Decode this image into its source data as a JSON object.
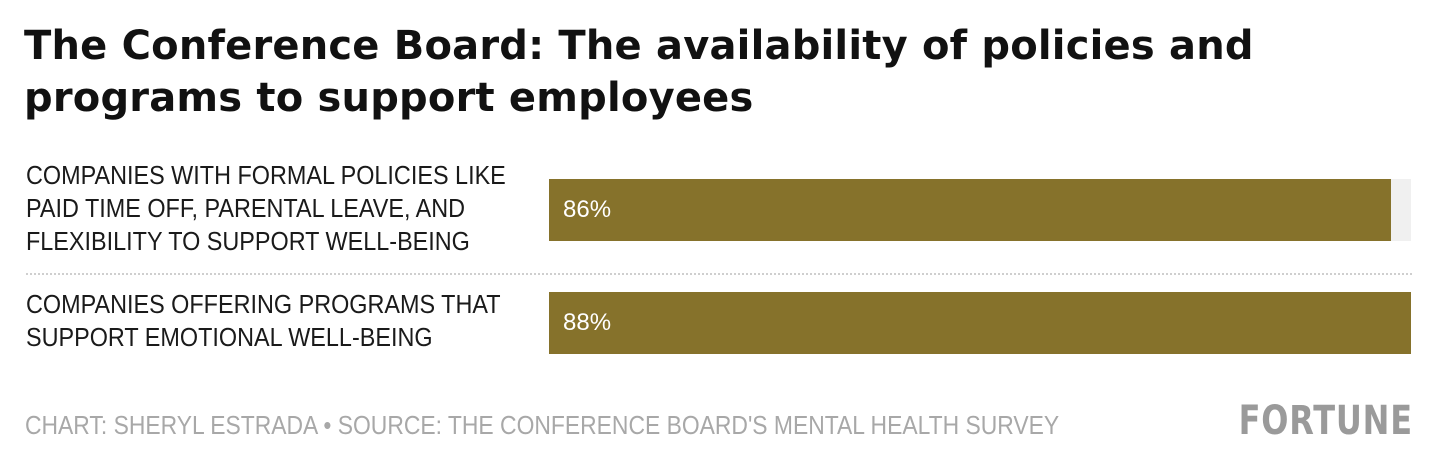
{
  "chart_data": {
    "type": "bar",
    "orientation": "horizontal",
    "title": "The Conference Board: The availability of policies and programs to support employees",
    "categories": [
      "COMPANIES WITH FORMAL POLICIES LIKE PAID TIME OFF, PARENTAL LEAVE, AND FLEXIBILITY TO SUPPORT WELL-BEING",
      "COMPANIES OFFERING PROGRAMS THAT SUPPORT EMOTIONAL WELL-BEING"
    ],
    "category_lines": [
      [
        "COMPANIES WITH FORMAL POLICIES LIKE",
        "PAID TIME OFF, PARENTAL LEAVE, AND",
        "FLEXIBILITY TO SUPPORT WELL-BEING"
      ],
      [
        "COMPANIES OFFERING PROGRAMS THAT",
        "SUPPORT EMOTIONAL WELL-BEING"
      ]
    ],
    "values": [
      86,
      88
    ],
    "value_labels": [
      "86%",
      "88%"
    ],
    "unit": "%",
    "xlim": [
      0,
      88
    ],
    "bar_color": "#86722b",
    "track_color": "#f0f0f0",
    "grid": false,
    "legend": "none"
  },
  "footer": {
    "credit": "CHART: SHERYL ESTRADA • SOURCE: THE CONFERENCE BOARD'S MENTAL HEALTH SURVEY"
  },
  "brand": {
    "logo_text": "FORTUNE",
    "color": "#9a9a9a"
  }
}
